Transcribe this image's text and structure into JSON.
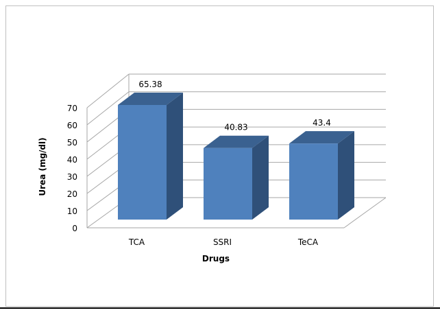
{
  "chart_data": {
    "type": "bar",
    "style": "3d-column",
    "categories": [
      "TCA",
      "SSRI",
      "TeCA"
    ],
    "values": [
      65.38,
      40.83,
      43.4
    ],
    "data_labels": [
      "65.38",
      "40.83",
      "43.4"
    ],
    "title": "",
    "xlabel": "Drugs",
    "ylabel": "Urea (mg/dl)",
    "ylim": [
      0,
      70
    ],
    "yticks": [
      "0",
      "10",
      "20",
      "30",
      "40",
      "50",
      "60",
      "70"
    ],
    "grid": true,
    "legend": "none",
    "colors": {
      "front": "#4f81bd",
      "top": "#3a6190",
      "side": "#2f5079",
      "grid": "#a6a6a6"
    }
  }
}
